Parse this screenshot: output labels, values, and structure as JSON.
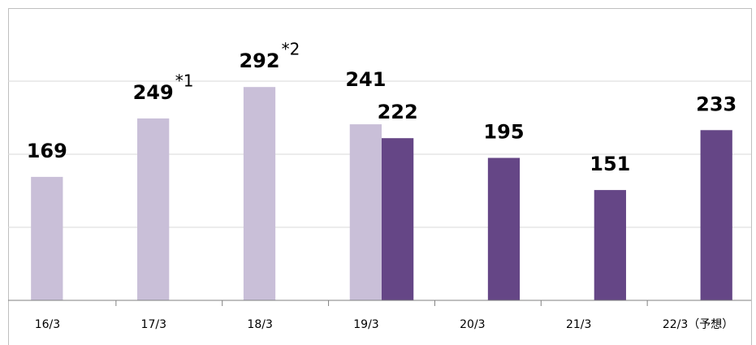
{
  "chart_data": {
    "type": "bar",
    "categories": [
      "16/3",
      "17/3",
      "18/3",
      "19/3",
      "20/3",
      "21/3",
      "22/3（予想）"
    ],
    "series": [
      {
        "color": "#c9bfd8",
        "values": [
          169,
          249,
          292,
          241,
          null,
          null,
          null
        ]
      },
      {
        "color": "#654686",
        "values": [
          null,
          null,
          null,
          222,
          195,
          151,
          233
        ]
      }
    ],
    "annotations": [
      {
        "text": "*1",
        "category": 1
      },
      {
        "text": "*2",
        "category": 2
      }
    ],
    "ylim": [
      0,
      400
    ],
    "yticks": [
      0,
      100,
      200,
      300,
      400
    ],
    "grid": true
  }
}
